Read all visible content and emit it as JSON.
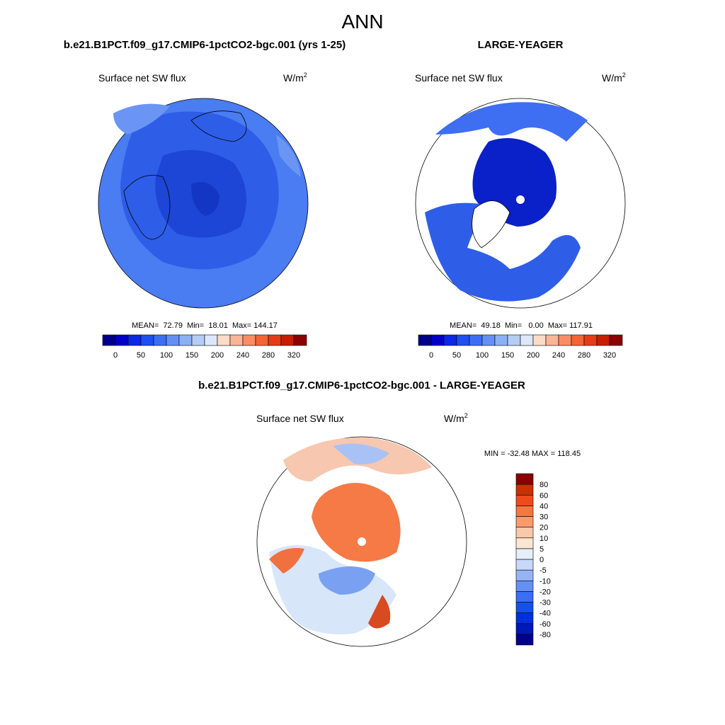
{
  "title": "ANN",
  "panels": [
    {
      "case": "b.e21.B1PCT.f09_g17.CMIP6-1pctCO2-bgc.001 (yrs 1-25)",
      "variable": "Surface net SW flux",
      "units": "W/m",
      "units_power": "2",
      "stats": "MEAN=  72.79  Min=  18.01  Max= 144.17"
    },
    {
      "case": "LARGE-YEAGER",
      "variable": "Surface net SW flux",
      "units": "W/m",
      "units_power": "2",
      "stats": "MEAN=  49.18  Min=   0.00  Max= 117.91"
    },
    {
      "case": "b.e21.B1PCT.f09_g17.CMIP6-1pctCO2-bgc.001 - LARGE-YEAGER",
      "variable": "Surface net SW flux",
      "units": "W/m",
      "units_power": "2",
      "stats": "MIN = -32.48 MAX = 118.45"
    }
  ],
  "colorbar": {
    "colors": [
      "#00008b",
      "#0000c8",
      "#0a28e6",
      "#1e50f0",
      "#3c6ef5",
      "#6490f5",
      "#8cb0f5",
      "#b4cdf5",
      "#dce8fa",
      "#fadcc8",
      "#fab496",
      "#fa8c64",
      "#f56432",
      "#e63c14",
      "#c81e00",
      "#8b0000"
    ],
    "labels": [
      "0",
      "50",
      "100",
      "150",
      "200",
      "240",
      "280",
      "320"
    ]
  },
  "diff_colorbar": {
    "colors": [
      "#00008b",
      "#0018b4",
      "#0030dc",
      "#1450f0",
      "#3c6ef5",
      "#6490f5",
      "#96b4f5",
      "#c8d8fa",
      "#e6eefa",
      "#fae6d2",
      "#fac8aa",
      "#fa9b6e",
      "#f57840",
      "#f04b1e",
      "#c83200",
      "#8b0000"
    ],
    "labels": [
      "-80",
      "-60",
      "-40",
      "-30",
      "-20",
      "-10",
      "-5",
      "0",
      "5",
      "10",
      "20",
      "30",
      "40",
      "60",
      "80"
    ]
  }
}
